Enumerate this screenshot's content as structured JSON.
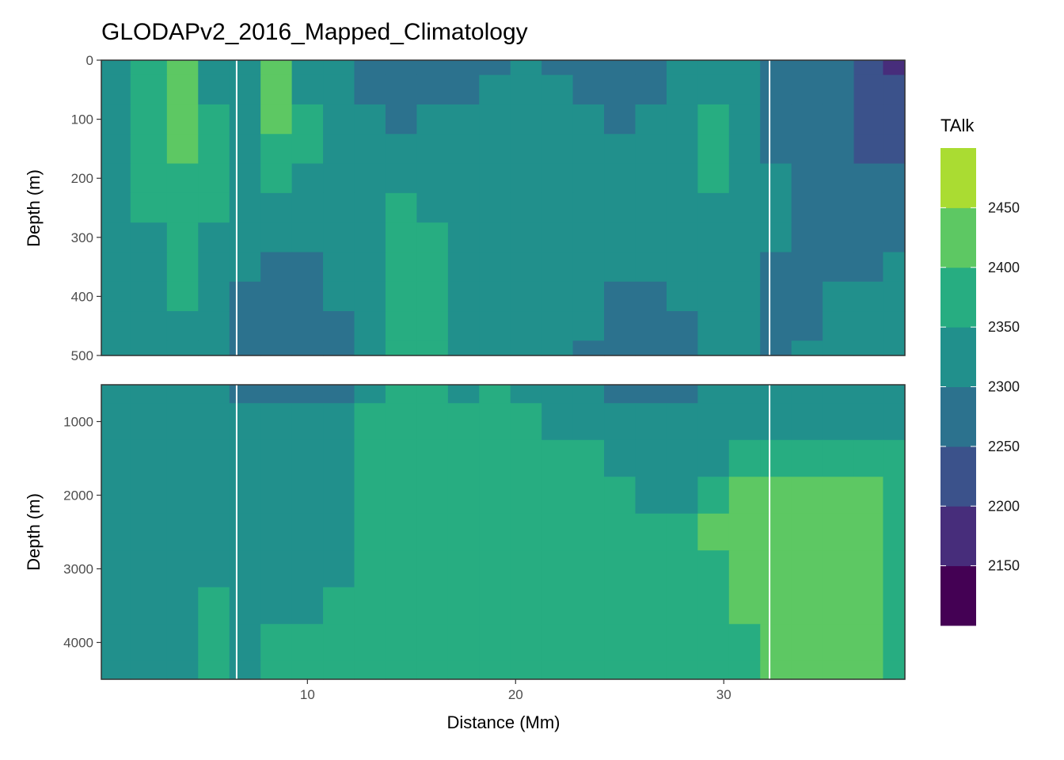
{
  "title": "GLODAPv2_2016_Mapped_Climatology",
  "xlabel": "Distance (Mm)",
  "ylabel": "Depth (m)",
  "legend": {
    "title": "TAlk",
    "labels": [
      "2450",
      "2400",
      "2350",
      "2300",
      "2250",
      "2200",
      "2150"
    ],
    "colors": [
      "#440154",
      "#472D7B",
      "#3B528B",
      "#2C728E",
      "#21908C",
      "#27AD81",
      "#5DC863",
      "#AADC32",
      "#FDE725"
    ],
    "breaks": [
      2100,
      2150,
      2200,
      2250,
      2300,
      2350,
      2400,
      2450,
      2500
    ]
  },
  "chart_data": {
    "type": "heatmap",
    "title": "GLODAPv2_2016_Mapped_Climatology",
    "xlabel": "Distance (Mm)",
    "ylabel": "Depth (m)",
    "variable": "TAlk",
    "xlim": [
      0.1,
      38.7
    ],
    "x_ticks": [
      "10",
      "20",
      "30"
    ],
    "x_tick_values": [
      10,
      20,
      30
    ],
    "panels": [
      {
        "name": "upper",
        "ylim": [
          0,
          500
        ],
        "y_ticks": [
          "0",
          "100",
          "200",
          "300",
          "400",
          "500"
        ],
        "y_tick_values": [
          0,
          100,
          200,
          300,
          400,
          500
        ],
        "x": [
          0.5,
          2.5,
          4.0,
          5.5,
          7.0,
          8.5,
          10.0,
          11.5,
          13.0,
          14.5,
          16.0,
          17.5,
          19.0,
          20.5,
          22.0,
          23.5,
          25.0,
          26.5,
          28.0,
          29.5,
          31.0,
          32.5,
          34.0,
          35.5,
          37.0,
          38.3
        ],
        "depth": [
          0,
          50,
          100,
          150,
          200,
          250,
          300,
          350,
          400,
          450,
          500
        ],
        "talk": [
          [
            2320,
            2370,
            2420,
            2340,
            2330,
            2440,
            2320,
            2300,
            2280,
            2270,
            2280,
            2280,
            2290,
            2300,
            2290,
            2280,
            2270,
            2280,
            2300,
            2320,
            2330,
            2280,
            2270,
            2260,
            2220,
            2180
          ],
          [
            2320,
            2370,
            2420,
            2340,
            2330,
            2430,
            2330,
            2310,
            2290,
            2280,
            2290,
            2290,
            2300,
            2310,
            2300,
            2290,
            2280,
            2290,
            2310,
            2330,
            2330,
            2280,
            2270,
            2260,
            2220,
            2200
          ],
          [
            2320,
            2360,
            2410,
            2360,
            2330,
            2400,
            2350,
            2320,
            2300,
            2290,
            2300,
            2310,
            2320,
            2330,
            2310,
            2300,
            2290,
            2300,
            2330,
            2360,
            2330,
            2290,
            2280,
            2260,
            2230,
            2220
          ],
          [
            2320,
            2360,
            2400,
            2360,
            2330,
            2390,
            2350,
            2320,
            2310,
            2300,
            2310,
            2320,
            2340,
            2340,
            2330,
            2310,
            2300,
            2310,
            2330,
            2370,
            2330,
            2290,
            2290,
            2270,
            2240,
            2230
          ],
          [
            2320,
            2350,
            2370,
            2360,
            2330,
            2350,
            2330,
            2320,
            2320,
            2330,
            2320,
            2330,
            2330,
            2330,
            2330,
            2320,
            2310,
            2310,
            2330,
            2360,
            2330,
            2300,
            2290,
            2280,
            2260,
            2250
          ],
          [
            2320,
            2350,
            2360,
            2350,
            2320,
            2330,
            2320,
            2320,
            2330,
            2360,
            2340,
            2330,
            2330,
            2330,
            2330,
            2320,
            2310,
            2310,
            2330,
            2340,
            2320,
            2300,
            2290,
            2280,
            2270,
            2270
          ],
          [
            2320,
            2340,
            2360,
            2340,
            2310,
            2320,
            2310,
            2310,
            2330,
            2370,
            2350,
            2330,
            2330,
            2320,
            2320,
            2310,
            2300,
            2300,
            2320,
            2330,
            2310,
            2300,
            2290,
            2290,
            2280,
            2290
          ],
          [
            2320,
            2340,
            2360,
            2340,
            2300,
            2290,
            2290,
            2300,
            2330,
            2370,
            2360,
            2330,
            2330,
            2320,
            2320,
            2310,
            2300,
            2300,
            2310,
            2320,
            2310,
            2290,
            2290,
            2290,
            2290,
            2300
          ],
          [
            2320,
            2330,
            2370,
            2330,
            2290,
            2280,
            2280,
            2300,
            2330,
            2370,
            2360,
            2330,
            2340,
            2320,
            2310,
            2300,
            2290,
            2290,
            2300,
            2310,
            2300,
            2290,
            2290,
            2300,
            2300,
            2310
          ],
          [
            2320,
            2330,
            2340,
            2330,
            2280,
            2270,
            2270,
            2290,
            2330,
            2370,
            2370,
            2330,
            2340,
            2310,
            2310,
            2300,
            2290,
            2290,
            2290,
            2300,
            2300,
            2290,
            2290,
            2300,
            2310,
            2320
          ],
          [
            2320,
            2330,
            2330,
            2330,
            2280,
            2270,
            2260,
            2280,
            2330,
            2370,
            2370,
            2330,
            2340,
            2310,
            2300,
            2290,
            2290,
            2280,
            2290,
            2300,
            2300,
            2290,
            2300,
            2310,
            2320,
            2320
          ]
        ]
      },
      {
        "name": "lower",
        "ylim": [
          500,
          4500
        ],
        "y_ticks": [
          "1000",
          "2000",
          "3000",
          "4000"
        ],
        "y_tick_values": [
          1000,
          2000,
          3000,
          4000
        ],
        "x": [
          0.5,
          2.5,
          4.0,
          5.5,
          7.0,
          8.5,
          10.0,
          11.5,
          13.0,
          14.5,
          16.0,
          17.5,
          19.0,
          20.5,
          22.0,
          23.5,
          25.0,
          26.5,
          28.0,
          29.5,
          31.0,
          32.5,
          34.0,
          35.5,
          37.0,
          38.3
        ],
        "depth": [
          500,
          1000,
          1500,
          2000,
          2500,
          3000,
          3500,
          4000,
          4500
        ],
        "talk": [
          [
            2330,
            2330,
            2330,
            2320,
            2280,
            2270,
            2280,
            2290,
            2340,
            2370,
            2370,
            2340,
            2360,
            2340,
            2310,
            2300,
            2290,
            2290,
            2290,
            2300,
            2300,
            2300,
            2310,
            2320,
            2330,
            2330
          ],
          [
            2330,
            2330,
            2330,
            2330,
            2310,
            2300,
            2300,
            2310,
            2350,
            2370,
            2370,
            2360,
            2370,
            2370,
            2330,
            2320,
            2310,
            2310,
            2300,
            2310,
            2320,
            2330,
            2340,
            2340,
            2340,
            2340
          ],
          [
            2330,
            2330,
            2330,
            2330,
            2330,
            2330,
            2320,
            2320,
            2360,
            2370,
            2370,
            2370,
            2370,
            2370,
            2360,
            2350,
            2340,
            2330,
            2320,
            2330,
            2350,
            2360,
            2370,
            2380,
            2380,
            2380
          ],
          [
            2330,
            2330,
            2330,
            2330,
            2330,
            2330,
            2320,
            2320,
            2360,
            2370,
            2370,
            2370,
            2370,
            2370,
            2370,
            2370,
            2360,
            2340,
            2330,
            2360,
            2400,
            2410,
            2420,
            2420,
            2420,
            2370
          ],
          [
            2330,
            2330,
            2330,
            2330,
            2330,
            2330,
            2330,
            2330,
            2370,
            2370,
            2370,
            2370,
            2370,
            2370,
            2370,
            2370,
            2370,
            2360,
            2370,
            2410,
            2420,
            2420,
            2420,
            2420,
            2420,
            2370
          ],
          [
            2330,
            2330,
            2330,
            2330,
            2330,
            2330,
            2330,
            2340,
            2370,
            2370,
            2370,
            2370,
            2370,
            2370,
            2370,
            2370,
            2370,
            2370,
            2370,
            2380,
            2420,
            2420,
            2420,
            2420,
            2420,
            2370
          ],
          [
            2330,
            2330,
            2330,
            2360,
            2330,
            2330,
            2330,
            2350,
            2370,
            2370,
            2370,
            2370,
            2370,
            2370,
            2370,
            2370,
            2370,
            2370,
            2370,
            2370,
            2400,
            2420,
            2420,
            2420,
            2420,
            2370
          ],
          [
            2330,
            2330,
            2330,
            2360,
            2330,
            2370,
            2360,
            2370,
            2370,
            2370,
            2370,
            2370,
            2370,
            2370,
            2370,
            2370,
            2370,
            2370,
            2370,
            2370,
            2380,
            2420,
            2420,
            2420,
            2420,
            2370
          ],
          [
            2330,
            2330,
            2330,
            2360,
            2330,
            2370,
            2370,
            2370,
            2370,
            2370,
            2370,
            2370,
            2370,
            2370,
            2370,
            2370,
            2370,
            2370,
            2370,
            2370,
            2370,
            2410,
            2420,
            2420,
            2420,
            2370
          ]
        ]
      }
    ],
    "section_lines_x": [
      6.6,
      32.2
    ],
    "legend_placement": "right",
    "grid": true
  }
}
